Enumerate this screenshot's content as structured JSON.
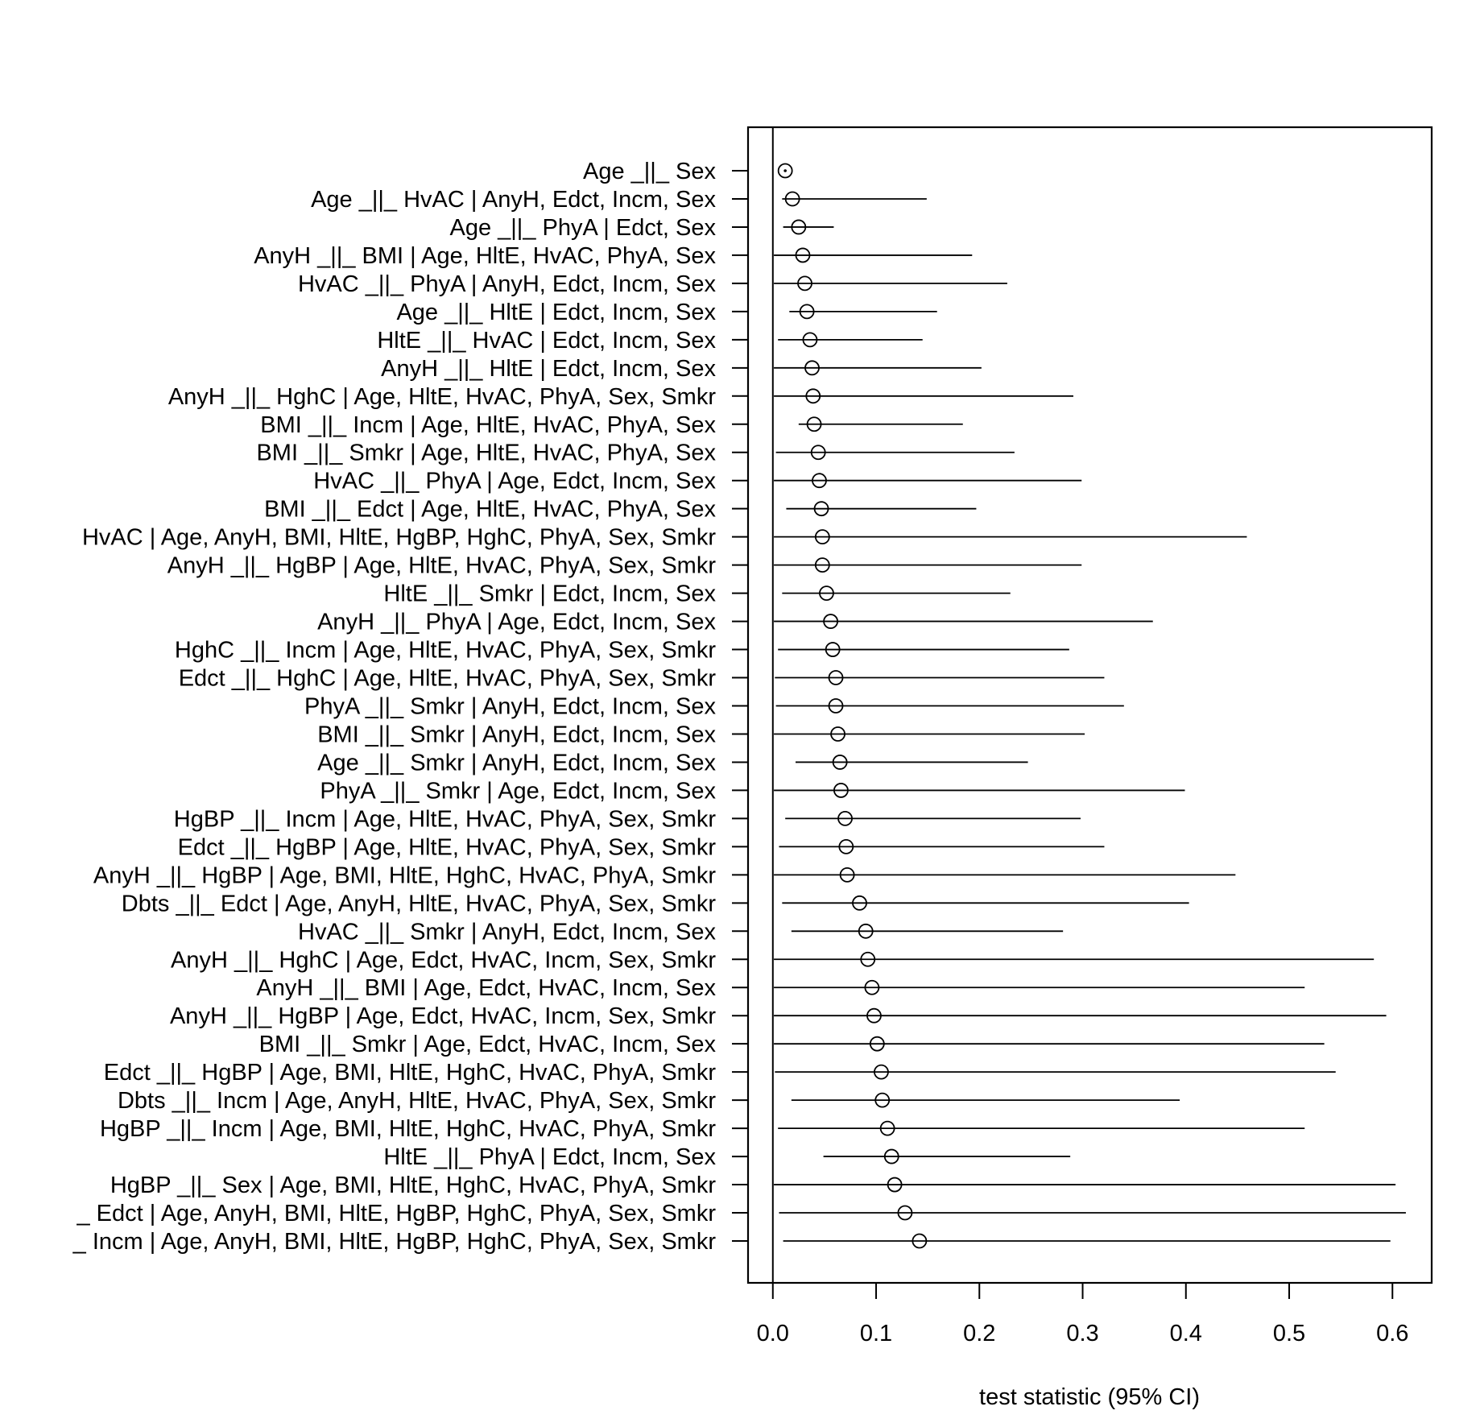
{
  "chart_data": {
    "type": "forest",
    "xlabel": "test statistic (95% CI)",
    "ylabel": "",
    "xlim": [
      -0.024,
      0.638
    ],
    "xticks": [
      0.0,
      0.1,
      0.2,
      0.3,
      0.4,
      0.5,
      0.6
    ],
    "xtick_labels": [
      "0.0",
      "0.1",
      "0.2",
      "0.3",
      "0.4",
      "0.5",
      "0.6"
    ],
    "reference_line_x": 0.0,
    "rows": [
      {
        "label": "Age _||_ Sex",
        "est": 0.012,
        "lo": null,
        "hi": null
      },
      {
        "label": "Age _||_ HvAC | AnyH, Edct, Incm, Sex",
        "est": 0.019,
        "lo": 0.009,
        "hi": 0.149
      },
      {
        "label": "Age _||_ PhyA | Edct, Sex",
        "est": 0.025,
        "lo": 0.01,
        "hi": 0.059
      },
      {
        "label": "AnyH _||_ BMI | Age, HltE, HvAC, PhyA, Sex",
        "est": 0.029,
        "lo": 0.001,
        "hi": 0.193
      },
      {
        "label": "HvAC _||_ PhyA | AnyH, Edct, Incm, Sex",
        "est": 0.031,
        "lo": 0.001,
        "hi": 0.227
      },
      {
        "label": "Age _||_ HltE | Edct, Incm, Sex",
        "est": 0.033,
        "lo": 0.016,
        "hi": 0.159
      },
      {
        "label": "HltE _||_ HvAC | Edct, Incm, Sex",
        "est": 0.036,
        "lo": 0.005,
        "hi": 0.145
      },
      {
        "label": "AnyH _||_ HltE | Edct, Incm, Sex",
        "est": 0.038,
        "lo": 0.001,
        "hi": 0.202
      },
      {
        "label": "AnyH _||_ HghC | Age, HltE, HvAC, PhyA, Sex, Smkr",
        "est": 0.039,
        "lo": 0.001,
        "hi": 0.291
      },
      {
        "label": "BMI _||_ Incm | Age, HltE, HvAC, PhyA, Sex",
        "est": 0.04,
        "lo": 0.025,
        "hi": 0.184
      },
      {
        "label": "BMI _||_ Smkr | Age, HltE, HvAC, PhyA, Sex",
        "est": 0.044,
        "lo": 0.003,
        "hi": 0.234
      },
      {
        "label": "HvAC _||_ PhyA | Age, Edct, Incm, Sex",
        "est": 0.045,
        "lo": 0.001,
        "hi": 0.299
      },
      {
        "label": "BMI _||_ Edct | Age, HltE, HvAC, PhyA, Sex",
        "est": 0.047,
        "lo": 0.013,
        "hi": 0.197
      },
      {
        "label": "HvAC | Age, AnyH, BMI, HltE, HgBP, HghC, PhyA, Sex, Smkr",
        "est": 0.048,
        "lo": 0.001,
        "hi": 0.459
      },
      {
        "label": "AnyH _||_ HgBP | Age, HltE, HvAC, PhyA, Sex, Smkr",
        "est": 0.048,
        "lo": 0.001,
        "hi": 0.299
      },
      {
        "label": "HltE _||_ Smkr | Edct, Incm, Sex",
        "est": 0.052,
        "lo": 0.009,
        "hi": 0.23
      },
      {
        "label": "AnyH _||_ PhyA | Age, Edct, Incm, Sex",
        "est": 0.056,
        "lo": 0.001,
        "hi": 0.368
      },
      {
        "label": "HghC _||_ Incm | Age, HltE, HvAC, PhyA, Sex, Smkr",
        "est": 0.058,
        "lo": 0.005,
        "hi": 0.287
      },
      {
        "label": "Edct _||_ HghC | Age, HltE, HvAC, PhyA, Sex, Smkr",
        "est": 0.061,
        "lo": 0.002,
        "hi": 0.321
      },
      {
        "label": "PhyA _||_ Smkr | AnyH, Edct, Incm, Sex",
        "est": 0.061,
        "lo": 0.003,
        "hi": 0.34
      },
      {
        "label": "BMI _||_ Smkr | AnyH, Edct, Incm, Sex",
        "est": 0.063,
        "lo": 0.001,
        "hi": 0.302
      },
      {
        "label": "Age _||_ Smkr | AnyH, Edct, Incm, Sex",
        "est": 0.065,
        "lo": 0.022,
        "hi": 0.247
      },
      {
        "label": "PhyA _||_ Smkr | Age, Edct, Incm, Sex",
        "est": 0.066,
        "lo": 0.001,
        "hi": 0.399
      },
      {
        "label": "HgBP _||_ Incm | Age, HltE, HvAC, PhyA, Sex, Smkr",
        "est": 0.07,
        "lo": 0.012,
        "hi": 0.298
      },
      {
        "label": "Edct _||_ HgBP | Age, HltE, HvAC, PhyA, Sex, Smkr",
        "est": 0.071,
        "lo": 0.006,
        "hi": 0.321
      },
      {
        "label": "AnyH _||_ HgBP | Age, BMI, HltE, HghC, HvAC, PhyA, Smkr",
        "est": 0.072,
        "lo": 0.001,
        "hi": 0.448
      },
      {
        "label": "Dbts _||_ Edct | Age, AnyH, HltE, HvAC, PhyA, Sex, Smkr",
        "est": 0.084,
        "lo": 0.009,
        "hi": 0.403
      },
      {
        "label": "HvAC _||_ Smkr | AnyH, Edct, Incm, Sex",
        "est": 0.09,
        "lo": 0.018,
        "hi": 0.281
      },
      {
        "label": "AnyH _||_ HghC | Age, Edct, HvAC, Incm, Sex, Smkr",
        "est": 0.092,
        "lo": 0.001,
        "hi": 0.582
      },
      {
        "label": "AnyH _||_ BMI | Age, Edct, HvAC, Incm, Sex",
        "est": 0.096,
        "lo": 0.001,
        "hi": 0.515
      },
      {
        "label": "AnyH _||_ HgBP | Age, Edct, HvAC, Incm, Sex, Smkr",
        "est": 0.098,
        "lo": 0.001,
        "hi": 0.594
      },
      {
        "label": "BMI _||_ Smkr | Age, Edct, HvAC, Incm, Sex",
        "est": 0.101,
        "lo": 0.001,
        "hi": 0.534
      },
      {
        "label": "Edct _||_ HgBP | Age, BMI, HltE, HghC, HvAC, PhyA, Smkr",
        "est": 0.105,
        "lo": 0.002,
        "hi": 0.545
      },
      {
        "label": "Dbts _||_ Incm | Age, AnyH, HltE, HvAC, PhyA, Sex, Smkr",
        "est": 0.106,
        "lo": 0.018,
        "hi": 0.394
      },
      {
        "label": "HgBP _||_ Incm | Age, BMI, HltE, HghC, HvAC, PhyA, Smkr",
        "est": 0.111,
        "lo": 0.005,
        "hi": 0.515
      },
      {
        "label": "HltE _||_ PhyA | Edct, Incm, Sex",
        "est": 0.115,
        "lo": 0.049,
        "hi": 0.288
      },
      {
        "label": "HgBP _||_ Sex | Age, BMI, HltE, HghC, HvAC, PhyA, Smkr",
        "est": 0.118,
        "lo": 0.001,
        "hi": 0.603
      },
      {
        "label": "_ Edct | Age, AnyH, BMI, HltE, HgBP, HghC, PhyA, Sex, Smkr",
        "est": 0.128,
        "lo": 0.006,
        "hi": 0.613
      },
      {
        "label": "_ Incm | Age, AnyH, BMI, HltE, HgBP, HghC, PhyA, Sex, Smkr",
        "est": 0.142,
        "lo": 0.01,
        "hi": 0.598
      }
    ]
  }
}
